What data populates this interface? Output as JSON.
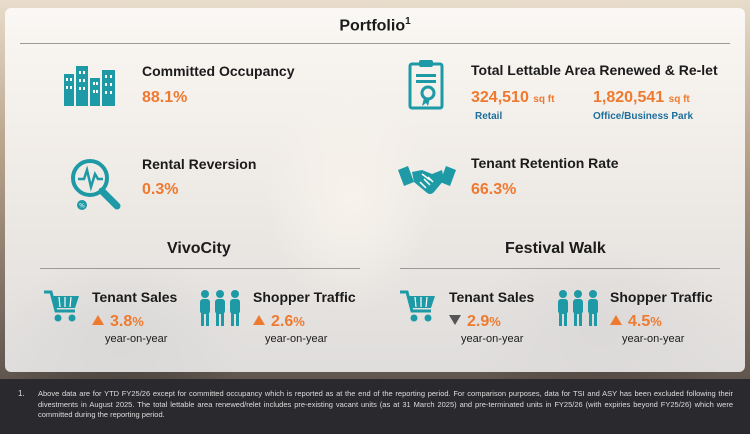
{
  "portfolio": {
    "title": "Portfolio",
    "title_sup": "1",
    "committed_occupancy": {
      "label": "Committed Occupancy",
      "value": "88.1%"
    },
    "rental_reversion": {
      "label": "Rental Reversion",
      "value": "0.3%"
    },
    "total_lettable_area": {
      "label": "Total Lettable Area Renewed & Re-let",
      "retail_value": "324,510",
      "retail_unit": "sq ft",
      "retail_label": "Retail",
      "office_value": "1,820,541",
      "office_unit": "sq ft",
      "office_label": "Office/Business Park"
    },
    "tenant_retention": {
      "label": "Tenant Retention Rate",
      "value": "66.3%"
    }
  },
  "vivocity": {
    "title": "VivoCity",
    "tenant_sales": {
      "label": "Tenant Sales",
      "value": "3.8",
      "pct": "%",
      "direction": "up",
      "note": "year-on-year"
    },
    "shopper_traffic": {
      "label": "Shopper Traffic",
      "value": "2.6",
      "pct": "%",
      "direction": "up",
      "note": "year-on-year"
    }
  },
  "festival_walk": {
    "title": "Festival Walk",
    "tenant_sales": {
      "label": "Tenant Sales",
      "value": "2.9",
      "pct": "%",
      "direction": "down",
      "note": "year-on-year"
    },
    "shopper_traffic": {
      "label": "Shopper Traffic",
      "value": "4.5",
      "pct": "%",
      "direction": "up",
      "note": "year-on-year"
    }
  },
  "footnote": {
    "number": "1.",
    "text": "Above data are for YTD FY25/26 except for committed occupancy which is reported as at the end of the reporting period. For comparison purposes, data for TSI and ASY has been excluded following their divestments in August 2025. The total lettable area renewed/relet includes pre-existing vacant units (as at 31 March 2025) and pre-terminated units in FY25/26 (with expiries beyond FY25/26) which were committed during the reporting period."
  },
  "colors": {
    "accent": "#ee7a30",
    "icon": "#1d9aa5",
    "sublabel": "#1e6f9c"
  },
  "icons": [
    "buildings-icon",
    "certificate-icon",
    "magnifier-pulse-icon",
    "handshake-icon",
    "shopping-cart-icon",
    "people-group-icon"
  ]
}
